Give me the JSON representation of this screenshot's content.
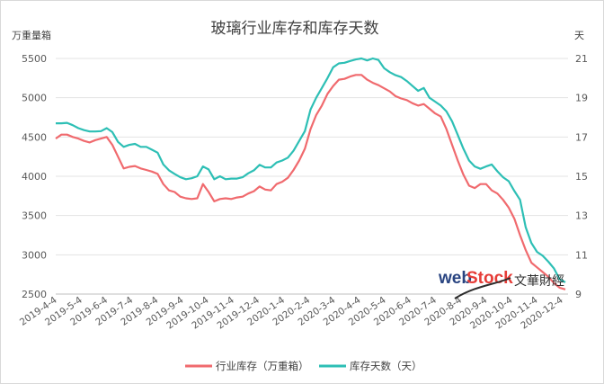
{
  "chart_data": {
    "type": "line",
    "title": "玻璃行业库存和库存天数",
    "y_left_label": "万重量箱",
    "y_right_label": "天",
    "y_left_ticks": [
      2500,
      3000,
      3500,
      4000,
      4500,
      5000,
      5500
    ],
    "y_right_ticks": [
      9,
      11,
      13,
      15,
      17,
      19,
      21
    ],
    "ylim_left": [
      2500,
      5500
    ],
    "ylim_right": [
      9,
      21
    ],
    "x_labels": [
      "2019-4-4",
      "2019-5-4",
      "2019-6-4",
      "2019-7-4",
      "2019-8-4",
      "2019-9-4",
      "2019-10-4",
      "2019-11-4",
      "2019-12-4",
      "2020-1-4",
      "2020-2-4",
      "2020-3-4",
      "2020-4-4",
      "2020-5-4",
      "2020-6-4",
      "2020-7-4",
      "2020-8-4",
      "2020-9-4",
      "2020-10-4",
      "2020-11-4",
      "2020-12-4"
    ],
    "grid": true,
    "legend_position": "bottom",
    "series": [
      {
        "name": "行业库存（万重箱）",
        "axis": "left",
        "color": "#f06a6e",
        "values": [
          4480,
          4530,
          4530,
          4500,
          4480,
          4450,
          4430,
          4460,
          4480,
          4500,
          4400,
          4250,
          4100,
          4120,
          4130,
          4100,
          4080,
          4060,
          4030,
          3900,
          3820,
          3800,
          3740,
          3720,
          3710,
          3720,
          3900,
          3800,
          3680,
          3710,
          3720,
          3710,
          3730,
          3740,
          3780,
          3810,
          3870,
          3830,
          3820,
          3900,
          3930,
          3980,
          4080,
          4200,
          4350,
          4600,
          4780,
          4900,
          5050,
          5150,
          5230,
          5240,
          5270,
          5290,
          5290,
          5230,
          5190,
          5160,
          5120,
          5080,
          5020,
          4990,
          4970,
          4930,
          4900,
          4920,
          4860,
          4800,
          4760,
          4600,
          4400,
          4200,
          4020,
          3880,
          3850,
          3900,
          3900,
          3820,
          3780,
          3700,
          3600,
          3460,
          3250,
          3060,
          2900,
          2840,
          2780,
          2720,
          2640,
          2580,
          2560
        ]
      },
      {
        "name": "库存天数（天）",
        "axis": "right",
        "color": "#2dbfb5",
        "values": [
          17.7,
          17.7,
          17.72,
          17.6,
          17.45,
          17.35,
          17.28,
          17.28,
          17.3,
          17.45,
          17.25,
          16.75,
          16.5,
          16.6,
          16.65,
          16.5,
          16.5,
          16.35,
          16.2,
          15.6,
          15.3,
          15.12,
          14.95,
          14.85,
          14.9,
          15.0,
          15.5,
          15.35,
          14.85,
          15.0,
          14.85,
          14.88,
          14.88,
          14.95,
          15.15,
          15.3,
          15.58,
          15.45,
          15.45,
          15.7,
          15.8,
          15.95,
          16.3,
          16.8,
          17.3,
          18.4,
          19.0,
          19.5,
          20.0,
          20.55,
          20.75,
          20.78,
          20.87,
          20.95,
          21.0,
          20.9,
          21.0,
          20.92,
          20.5,
          20.3,
          20.15,
          20.05,
          19.85,
          19.6,
          19.35,
          19.5,
          19.0,
          18.8,
          18.6,
          18.3,
          17.8,
          17.1,
          16.4,
          15.8,
          15.5,
          15.38,
          15.5,
          15.6,
          15.25,
          14.95,
          14.75,
          14.25,
          13.8,
          12.4,
          11.6,
          11.15,
          10.95,
          10.65,
          10.3,
          9.75,
          9.6
        ]
      }
    ]
  },
  "watermark": {
    "web": "web",
    "stock": "Stock",
    "cn": "文華財經"
  }
}
